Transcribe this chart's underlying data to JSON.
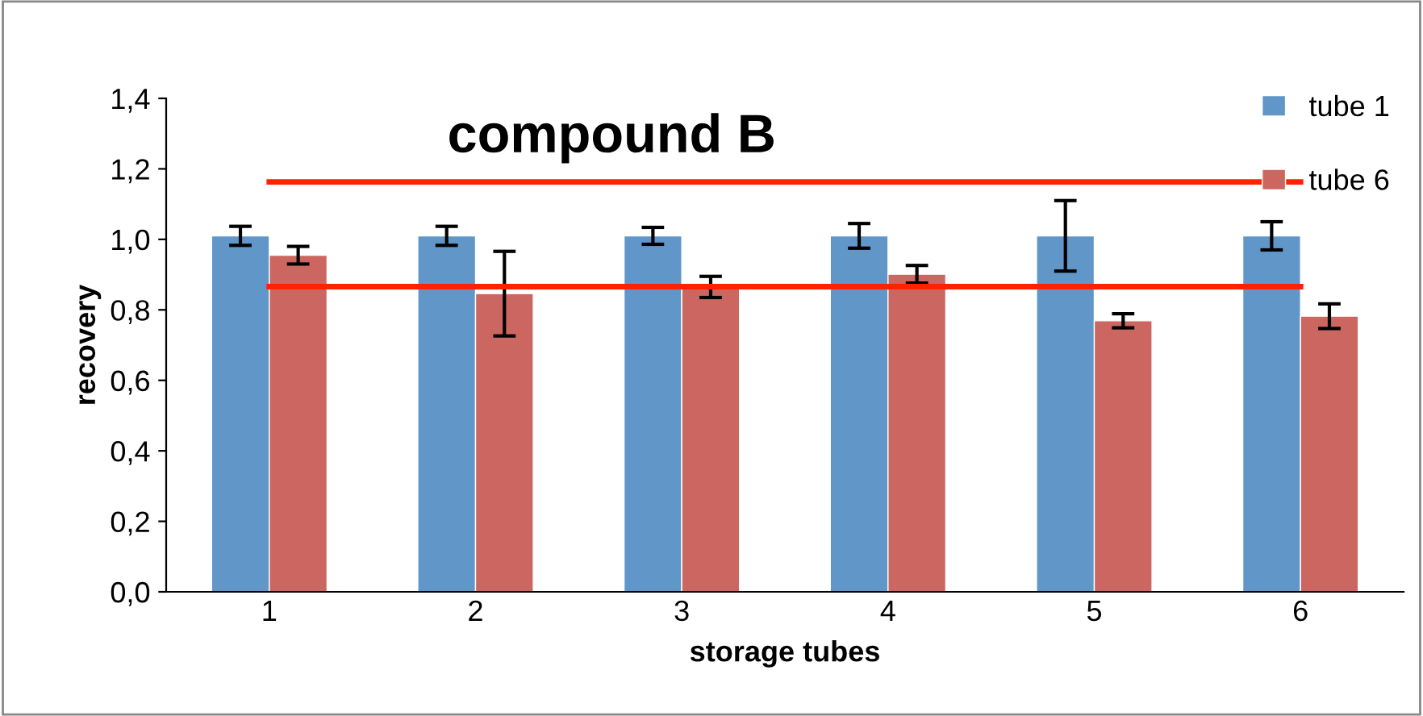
{
  "chart_data": {
    "type": "bar",
    "title": "compound B",
    "xlabel": "storage tubes",
    "ylabel": "recovery",
    "categories": [
      "1",
      "2",
      "3",
      "4",
      "5",
      "6"
    ],
    "series": [
      {
        "name": "tube 1",
        "color": "#6196c9",
        "values": [
          1.01,
          1.01,
          1.01,
          1.01,
          1.01,
          1.01
        ],
        "errors": [
          0.027,
          0.027,
          0.024,
          0.035,
          0.1,
          0.04
        ]
      },
      {
        "name": "tube 6",
        "color": "#cc6660",
        "values": [
          0.955,
          0.846,
          0.865,
          0.901,
          0.769,
          0.782
        ],
        "errors": [
          0.025,
          0.12,
          0.03,
          0.025,
          0.02,
          0.035
        ]
      },
      {
        "type": "line",
        "color": "#ff2200",
        "values": [
          1.163,
          1.163,
          1.163,
          1.163,
          1.163,
          1.163
        ]
      },
      {
        "type": "line",
        "color": "#ff2200",
        "values": [
          0.866,
          0.866,
          0.866,
          0.866,
          0.866,
          0.866
        ]
      }
    ],
    "ylim": [
      0,
      1.4
    ],
    "yticks": [
      {
        "value": 0,
        "label": "0,0"
      },
      {
        "value": 0.2,
        "label": "0,2"
      },
      {
        "value": 0.4,
        "label": "0,4"
      },
      {
        "value": 0.6,
        "label": "0,6"
      },
      {
        "value": 0.8,
        "label": "0,8"
      },
      {
        "value": 1.0,
        "label": "1,0"
      },
      {
        "value": 1.2,
        "label": "1,2"
      },
      {
        "value": 1.4,
        "label": "1,4"
      }
    ],
    "legend": "top right"
  }
}
